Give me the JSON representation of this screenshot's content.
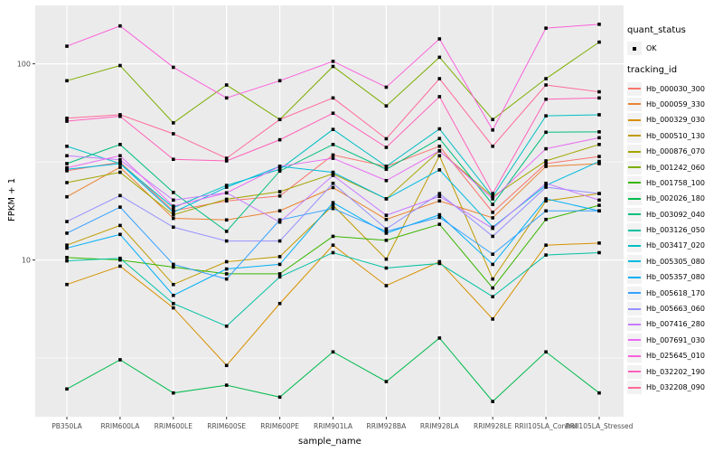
{
  "chart_data": {
    "type": "line",
    "title": "",
    "xlabel": "sample_name",
    "ylabel": "FPKM + 1",
    "y_scale": "log10",
    "y_ticks": [
      10,
      100
    ],
    "y_minor_ticks": [
      3.162,
      31.62
    ],
    "ylim": [
      1.55,
      190
    ],
    "grid": true,
    "legend_position": "right",
    "panel_bg": "#EBEBEB",
    "grid_color": "#FFFFFF",
    "point_color": "#000000",
    "tick_text_color": "#4D4D4D",
    "categories": [
      "PB350LA",
      "RRIM600LA",
      "RRIM600LE",
      "RRIM600SE",
      "RRIM600PE",
      "RRIM901LA",
      "RRIM928BA",
      "RRIM928LA",
      "RRIM928LE",
      "RRII105LA_Control",
      "RRII105LA_Stressed"
    ],
    "series": [
      {
        "name": "Hb_000030_300",
        "color": "#F8766D",
        "values": [
          28.5,
          31.5,
          17.8,
          20.0,
          21.2,
          34.3,
          30.0,
          38.0,
          17.5,
          31.0,
          33.7
        ]
      },
      {
        "name": "Hb_000059_330",
        "color": "#EA8331",
        "values": [
          21.0,
          29.7,
          16.3,
          16.0,
          17.8,
          23.4,
          16.1,
          20.0,
          16.4,
          30.0,
          31.0
        ]
      },
      {
        "name": "Hb_000329_030",
        "color": "#D89000",
        "values": [
          7.5,
          9.3,
          5.7,
          2.9,
          6.0,
          11.9,
          7.4,
          9.8,
          5.0,
          11.9,
          12.2
        ]
      },
      {
        "name": "Hb_000510_130",
        "color": "#C09B00",
        "values": [
          11.9,
          15.0,
          7.5,
          9.8,
          10.4,
          19.0,
          10.1,
          34.0,
          8.0,
          20.0,
          21.8
        ]
      },
      {
        "name": "Hb_000876_070",
        "color": "#A3A500",
        "values": [
          24.8,
          28.0,
          17.0,
          20.4,
          22.3,
          27.5,
          20.5,
          36.0,
          21.0,
          32.0,
          38.8
        ]
      },
      {
        "name": "Hb_001242_060",
        "color": "#7CAE00",
        "values": [
          82,
          98,
          50,
          78,
          52,
          97,
          61,
          108,
          52,
          84,
          129
        ]
      },
      {
        "name": "Hb_001758_100",
        "color": "#39B600",
        "values": [
          10.3,
          10.0,
          9.2,
          8.5,
          8.5,
          13.2,
          12.6,
          15.2,
          7.2,
          16.1,
          19.0
        ]
      },
      {
        "name": "Hb_002026_180",
        "color": "#00BB4E",
        "values": [
          2.2,
          3.1,
          2.1,
          2.3,
          2.0,
          3.4,
          2.4,
          4.0,
          1.9,
          3.4,
          2.1
        ]
      },
      {
        "name": "Hb_003092_040",
        "color": "#00BF7D",
        "values": [
          31.0,
          38.8,
          22.1,
          14.0,
          28.4,
          38.8,
          29.0,
          41.6,
          19.2,
          44.8,
          45.0
        ]
      },
      {
        "name": "Hb_003126_050",
        "color": "#00C1A3",
        "values": [
          9.9,
          10.2,
          6.0,
          4.6,
          8.2,
          10.9,
          9.1,
          9.6,
          6.5,
          10.6,
          10.9
        ]
      },
      {
        "name": "Hb_003417_020",
        "color": "#00BFC4",
        "values": [
          38.0,
          31.0,
          18.5,
          24.0,
          29.0,
          46.3,
          30.0,
          46.6,
          21.0,
          54.3,
          55.0
        ]
      },
      {
        "name": "Hb_005305_080",
        "color": "#00BAE0",
        "values": [
          29.0,
          31.0,
          17.5,
          23.5,
          30.0,
          28.0,
          20.5,
          28.8,
          14.7,
          24.0,
          31.8
        ]
      },
      {
        "name": "Hb_005357_080",
        "color": "#00B0F6",
        "values": [
          11.5,
          13.5,
          6.6,
          9.0,
          9.5,
          19.6,
          13.7,
          17.0,
          9.5,
          20.5,
          17.8
        ]
      },
      {
        "name": "Hb_005618_170",
        "color": "#35A2FF",
        "values": [
          13.7,
          18.6,
          9.5,
          8.0,
          16.0,
          18.3,
          14.0,
          16.5,
          10.7,
          17.8,
          17.8
        ]
      },
      {
        "name": "Hb_005663_060",
        "color": "#9590FF",
        "values": [
          15.7,
          21.3,
          14.7,
          12.5,
          12.5,
          24.6,
          14.4,
          21.8,
          13.2,
          23.5,
          21.8
        ]
      },
      {
        "name": "Hb_007416_280",
        "color": "#C77CFF",
        "values": [
          34.0,
          32.4,
          20.2,
          22.0,
          15.6,
          27.0,
          16.9,
          21.1,
          14.5,
          24.6,
          20.2
        ]
      },
      {
        "name": "Hb_007691_030",
        "color": "#E76BF3",
        "values": [
          29.5,
          34.0,
          18.8,
          22.0,
          30.0,
          33.0,
          25.4,
          36.0,
          20.5,
          36.9,
          42.0
        ]
      },
      {
        "name": "Hb_025645_010",
        "color": "#FA62DB",
        "values": [
          123,
          156,
          96,
          67,
          82,
          103,
          76,
          134,
          46,
          152,
          159
        ]
      },
      {
        "name": "Hb_032202_190",
        "color": "#FF62BC",
        "values": [
          51,
          54,
          32.6,
          32.0,
          41,
          56,
          37.5,
          68,
          21.8,
          66,
          67
        ]
      },
      {
        "name": "Hb_032208_090",
        "color": "#FF6A98",
        "values": [
          52.8,
          55,
          44,
          33,
          52,
          67,
          41.5,
          84,
          38,
          78,
          72
        ]
      }
    ]
  },
  "legend": {
    "quant_status_title": "quant_status",
    "quant_status_items": [
      {
        "label": "OK"
      }
    ],
    "tracking_id_title": "tracking_id"
  },
  "axes": {
    "x_title": "sample_name",
    "y_title": "FPKM + 1",
    "y_tick_labels": [
      "100",
      "10"
    ]
  }
}
